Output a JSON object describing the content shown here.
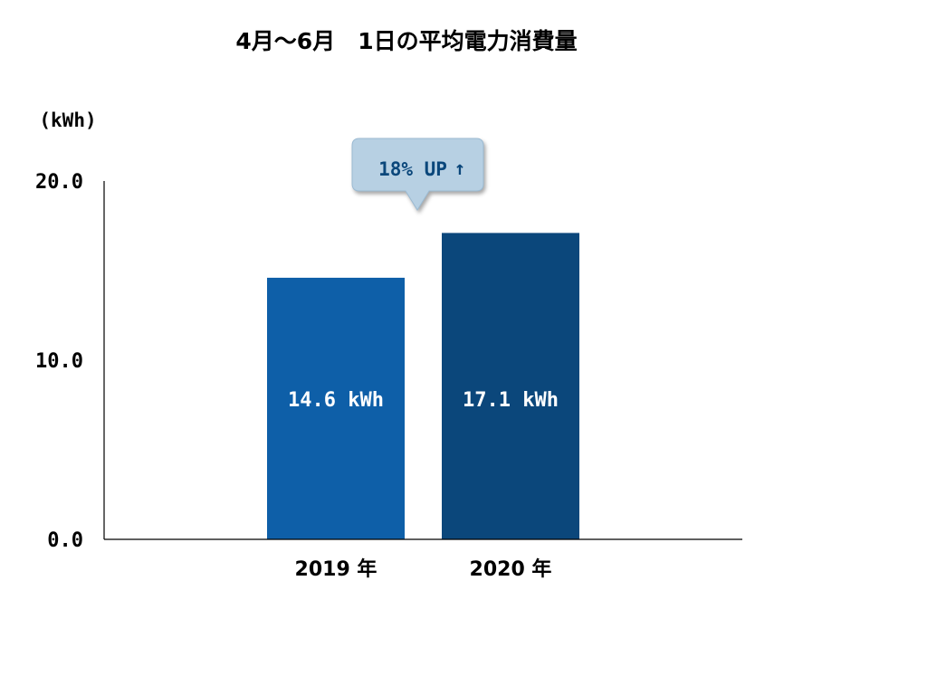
{
  "chart_data": {
    "type": "bar",
    "title": "4月～6月　1日の平均電力消費量",
    "ylabel": "(kWh)",
    "ylim": [
      0,
      20
    ],
    "yticks": [
      "0.0",
      "10.0",
      "20.0"
    ],
    "ytick_values": [
      0,
      10,
      20
    ],
    "categories": [
      "2019 年",
      "2020 年"
    ],
    "values": [
      14.6,
      17.1
    ],
    "data_labels": [
      "14.6 kWh",
      "17.1 kWh"
    ],
    "bar_colors": [
      "#0e5fa8",
      "#0b477b"
    ],
    "grid": false,
    "legend": "none",
    "annotation": {
      "text": "18% UP",
      "arrow": "↑",
      "target": "2020 年",
      "color": "#0b477b",
      "background": "#b7d0e3"
    }
  }
}
